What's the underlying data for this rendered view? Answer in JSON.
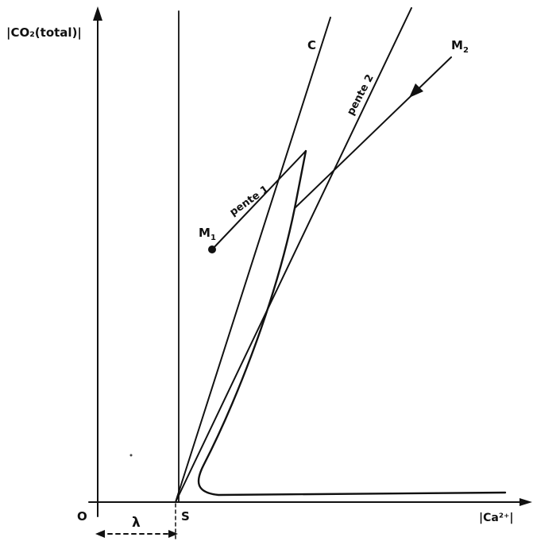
{
  "axes": {
    "y_label": "|CO₂(total)|",
    "x_label": "|Ca²⁺|",
    "origin_label": "O",
    "shift_label": "λ",
    "s_label": "S"
  },
  "curve_label": "C",
  "lines": {
    "pente1_label": "pente 1",
    "pente2_label": "pente 2"
  },
  "points": {
    "m1": {
      "label": "M",
      "sub": "1"
    },
    "m2": {
      "label": "M",
      "sub": "2"
    }
  },
  "colors": {
    "ink": "#111111",
    "background": "#ffffff"
  }
}
